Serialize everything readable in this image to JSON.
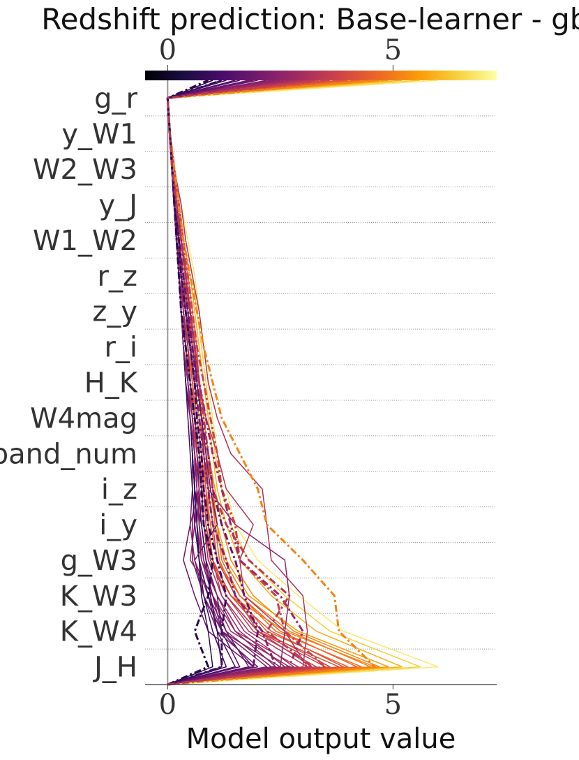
{
  "chart_data": {
    "type": "line",
    "title": "Redshift prediction: Base-learner - gbr",
    "xlabel": "Model output value",
    "ylabel": "",
    "features": [
      "g_r",
      "y_W1",
      "W2_W3",
      "y_J",
      "W1_W2",
      "r_z",
      "z_y",
      "r_i",
      "H_K",
      "W4mag",
      "band_num",
      "i_z",
      "i_y",
      "g_W3",
      "K_W3",
      "K_W4",
      "J_H"
    ],
    "xlim": [
      -0.5,
      7.3
    ],
    "base_value": 0,
    "x_ticks": [
      0,
      5
    ],
    "x_tick_labels": [
      "0",
      "5"
    ],
    "colorbar": {
      "range": [
        0,
        7.3
      ],
      "ticks": [
        0,
        5
      ],
      "tick_labels": [
        "0",
        "5"
      ],
      "colormap": [
        "#000004",
        "#1b0c41",
        "#4a0c6b",
        "#781c6d",
        "#a52c60",
        "#cf4446",
        "#ed6925",
        "#fb9b06",
        "#f7d13d",
        "#fcffa4"
      ]
    },
    "series": [
      {
        "final": 4.6,
        "values": [
          0.0,
          0.05,
          0.1,
          0.15,
          0.2,
          0.25,
          0.3,
          0.35,
          0.45,
          0.55,
          0.65,
          0.75,
          0.8,
          0.9,
          1.4,
          2.6,
          4.6
        ],
        "style": "solid"
      },
      {
        "final": 4.3,
        "values": [
          0.0,
          0.05,
          0.1,
          0.15,
          0.25,
          0.35,
          0.5,
          0.6,
          0.7,
          0.8,
          0.9,
          1.0,
          1.1,
          1.2,
          1.6,
          2.4,
          4.3
        ],
        "style": "solid"
      },
      {
        "final": 4.0,
        "values": [
          0.0,
          0.05,
          0.15,
          0.2,
          0.3,
          0.45,
          0.55,
          0.65,
          0.7,
          0.75,
          0.85,
          1.0,
          1.05,
          1.15,
          1.5,
          2.2,
          4.0
        ],
        "style": "solid"
      },
      {
        "final": 3.8,
        "values": [
          0.0,
          0.05,
          0.1,
          0.2,
          0.3,
          0.4,
          0.5,
          0.55,
          0.65,
          0.75,
          0.85,
          0.9,
          0.9,
          1.0,
          1.3,
          2.0,
          3.8
        ],
        "style": "solid"
      },
      {
        "final": 3.5,
        "values": [
          0.0,
          0.05,
          0.1,
          0.15,
          0.25,
          0.35,
          0.45,
          0.55,
          0.65,
          0.75,
          0.85,
          0.9,
          1.0,
          1.1,
          1.5,
          2.0,
          3.5
        ],
        "style": "solid"
      },
      {
        "final": 3.3,
        "values": [
          0.0,
          0.05,
          0.1,
          0.15,
          0.2,
          0.3,
          0.35,
          0.45,
          0.55,
          0.65,
          0.75,
          0.8,
          0.85,
          0.95,
          1.3,
          1.9,
          3.3
        ],
        "style": "solid"
      },
      {
        "final": 3.1,
        "values": [
          0.0,
          0.05,
          0.1,
          0.2,
          0.25,
          0.35,
          0.45,
          0.5,
          0.6,
          0.7,
          0.8,
          0.85,
          0.9,
          1.0,
          1.2,
          1.8,
          3.1
        ],
        "style": "solid"
      },
      {
        "final": 2.9,
        "values": [
          0.0,
          0.05,
          0.15,
          0.25,
          0.3,
          0.4,
          0.45,
          0.5,
          0.55,
          0.65,
          0.75,
          0.8,
          0.7,
          0.8,
          1.0,
          1.5,
          2.9
        ],
        "style": "solid"
      },
      {
        "final": 2.7,
        "values": [
          0.0,
          0.05,
          0.1,
          0.15,
          0.2,
          0.3,
          0.35,
          0.45,
          0.5,
          0.6,
          0.7,
          0.75,
          0.6,
          0.5,
          1.0,
          1.4,
          2.7
        ],
        "style": "solid"
      },
      {
        "final": 2.5,
        "values": [
          0.0,
          0.05,
          0.1,
          0.15,
          0.25,
          0.3,
          0.4,
          0.45,
          0.5,
          0.55,
          0.65,
          0.7,
          0.5,
          0.6,
          0.9,
          1.2,
          2.5
        ],
        "style": "solid"
      },
      {
        "final": 2.3,
        "values": [
          0.0,
          0.05,
          0.1,
          0.2,
          0.25,
          0.3,
          0.35,
          0.4,
          0.45,
          0.5,
          0.6,
          0.65,
          0.6,
          0.7,
          0.9,
          1.3,
          2.3
        ],
        "style": "solid"
      },
      {
        "final": 2.2,
        "values": [
          0.0,
          0.05,
          0.1,
          0.15,
          0.2,
          0.25,
          0.3,
          0.4,
          0.45,
          0.55,
          0.6,
          0.7,
          0.65,
          0.75,
          1.0,
          1.2,
          2.2
        ],
        "style": "solid"
      },
      {
        "final": 2.0,
        "values": [
          0.0,
          0.05,
          0.1,
          0.15,
          0.2,
          0.25,
          0.35,
          0.4,
          0.5,
          0.55,
          0.6,
          0.6,
          0.55,
          0.55,
          0.8,
          1.1,
          2.0
        ],
        "style": "solid"
      },
      {
        "final": 1.9,
        "values": [
          0.0,
          0.05,
          0.1,
          0.15,
          0.25,
          0.3,
          0.35,
          0.4,
          0.45,
          0.5,
          0.55,
          0.55,
          0.5,
          0.35,
          0.6,
          0.9,
          1.9
        ],
        "style": "solid"
      },
      {
        "final": 1.8,
        "values": [
          0.0,
          0.05,
          0.1,
          0.15,
          0.2,
          0.3,
          0.35,
          0.45,
          0.5,
          0.55,
          0.6,
          0.65,
          0.7,
          0.8,
          1.0,
          1.3,
          1.8
        ],
        "style": "solid"
      },
      {
        "final": 1.6,
        "values": [
          0.0,
          0.05,
          0.1,
          0.15,
          0.2,
          0.3,
          0.35,
          0.45,
          0.5,
          0.6,
          0.65,
          0.7,
          0.75,
          0.85,
          1.1,
          1.2,
          1.6
        ],
        "style": "solid"
      },
      {
        "final": 1.5,
        "values": [
          0.0,
          0.05,
          0.1,
          0.15,
          0.2,
          0.25,
          0.3,
          0.35,
          0.4,
          0.5,
          0.55,
          0.6,
          0.65,
          0.7,
          0.9,
          1.1,
          1.5
        ],
        "style": "solid"
      },
      {
        "final": 1.3,
        "values": [
          0.0,
          0.05,
          0.1,
          0.15,
          0.2,
          0.25,
          0.3,
          0.35,
          0.4,
          0.45,
          0.5,
          0.55,
          0.6,
          0.7,
          0.8,
          1.0,
          1.3
        ],
        "style": "solid"
      },
      {
        "final": 1.2,
        "values": [
          0.0,
          0.05,
          0.1,
          0.15,
          0.2,
          0.25,
          0.3,
          0.35,
          0.4,
          0.5,
          0.55,
          0.6,
          0.75,
          0.85,
          0.95,
          1.1,
          1.2
        ],
        "style": "solid"
      },
      {
        "final": 1.0,
        "values": [
          0.0,
          0.05,
          0.1,
          0.15,
          0.2,
          0.25,
          0.3,
          0.35,
          0.45,
          0.5,
          0.55,
          0.6,
          0.65,
          0.7,
          0.75,
          0.9,
          1.0
        ],
        "style": "solid"
      },
      {
        "final": 4.9,
        "values": [
          0.0,
          0.05,
          0.1,
          0.15,
          0.2,
          0.3,
          0.4,
          0.5,
          0.6,
          0.7,
          0.85,
          0.95,
          1.1,
          1.3,
          1.8,
          2.9,
          4.9
        ],
        "style": "solid"
      },
      {
        "final": 4.7,
        "values": [
          0.0,
          0.05,
          0.1,
          0.2,
          0.3,
          0.4,
          0.5,
          0.6,
          0.7,
          0.8,
          0.9,
          1.05,
          1.2,
          1.4,
          1.9,
          2.8,
          4.7
        ],
        "style": "solid"
      },
      {
        "final": 4.5,
        "values": [
          0.0,
          0.05,
          0.15,
          0.2,
          0.3,
          0.4,
          0.45,
          0.55,
          0.65,
          0.75,
          0.85,
          0.95,
          1.05,
          1.25,
          1.7,
          2.7,
          4.5
        ],
        "style": "solid"
      },
      {
        "final": 4.2,
        "values": [
          0.0,
          0.05,
          0.1,
          0.15,
          0.25,
          0.35,
          0.4,
          0.5,
          0.55,
          0.65,
          0.75,
          0.85,
          0.95,
          1.1,
          1.6,
          2.5,
          4.2
        ],
        "style": "solid"
      },
      {
        "final": 3.9,
        "values": [
          0.0,
          0.05,
          0.1,
          0.15,
          0.2,
          0.3,
          0.4,
          0.45,
          0.55,
          0.6,
          0.7,
          0.8,
          0.9,
          1.0,
          1.4,
          2.3,
          3.9
        ],
        "style": "solid"
      },
      {
        "final": 3.6,
        "values": [
          0.0,
          0.05,
          0.1,
          0.15,
          0.2,
          0.25,
          0.35,
          0.45,
          0.5,
          0.6,
          0.7,
          0.8,
          0.85,
          1.0,
          1.4,
          2.1,
          3.6
        ],
        "style": "solid"
      },
      {
        "final": 3.2,
        "values": [
          0.0,
          0.05,
          0.1,
          0.15,
          0.2,
          0.3,
          0.35,
          0.4,
          0.5,
          0.55,
          0.65,
          0.75,
          0.8,
          0.95,
          1.3,
          2.0,
          3.2
        ],
        "style": "solid"
      },
      {
        "final": 2.8,
        "values": [
          0.0,
          0.05,
          0.1,
          0.15,
          0.25,
          0.3,
          0.35,
          0.45,
          0.5,
          0.6,
          0.65,
          0.75,
          0.8,
          0.9,
          1.2,
          1.7,
          2.8
        ],
        "style": "solid"
      },
      {
        "final": 2.6,
        "values": [
          0.0,
          0.05,
          0.1,
          0.15,
          0.2,
          0.25,
          0.35,
          0.4,
          0.45,
          0.55,
          0.6,
          0.7,
          0.7,
          0.75,
          1.1,
          1.6,
          2.6
        ],
        "style": "solid"
      },
      {
        "final": 2.4,
        "values": [
          0.0,
          0.05,
          0.1,
          0.15,
          0.2,
          0.25,
          0.3,
          0.35,
          0.45,
          0.5,
          0.6,
          0.65,
          0.7,
          0.8,
          1.1,
          1.5,
          2.4
        ],
        "style": "solid"
      },
      {
        "final": 5.2,
        "values": [
          0.0,
          0.05,
          0.15,
          0.25,
          0.35,
          0.5,
          0.6,
          0.7,
          0.8,
          0.9,
          1.0,
          1.1,
          1.3,
          1.6,
          2.3,
          3.3,
          5.2
        ],
        "style": "solid"
      },
      {
        "final": 5.6,
        "values": [
          0.0,
          0.05,
          0.15,
          0.3,
          0.4,
          0.55,
          0.65,
          0.75,
          0.85,
          0.95,
          1.05,
          1.2,
          1.4,
          1.8,
          2.6,
          3.6,
          5.6
        ],
        "style": "solid"
      },
      {
        "final": 6.0,
        "values": [
          0.0,
          0.05,
          0.15,
          0.3,
          0.45,
          0.6,
          0.7,
          0.8,
          0.9,
          1.0,
          1.1,
          1.3,
          1.5,
          2.0,
          2.9,
          3.9,
          6.0
        ],
        "style": "solid"
      },
      {
        "final": 3.0,
        "values": [
          0.0,
          0.05,
          0.15,
          0.3,
          0.4,
          0.55,
          0.7,
          0.8,
          0.9,
          1.1,
          1.4,
          2.1,
          2.2,
          2.3,
          3.0,
          3.1,
          3.0
        ],
        "style": "solid"
      },
      {
        "final": 2.5,
        "values": [
          0.0,
          0.05,
          0.1,
          0.15,
          0.25,
          0.35,
          0.45,
          0.55,
          0.65,
          0.75,
          0.8,
          0.9,
          1.5,
          2.6,
          2.7,
          2.6,
          2.5
        ],
        "style": "solid"
      },
      {
        "final": 3.1,
        "values": [
          0.0,
          0.05,
          0.1,
          0.2,
          0.25,
          0.35,
          0.45,
          0.55,
          0.7,
          0.85,
          1.1,
          1.3,
          1.9,
          1.6,
          1.7,
          2.6,
          3.1
        ],
        "style": "solid"
      },
      {
        "final": 1.9,
        "values": [
          0.0,
          0.05,
          0.1,
          0.2,
          0.3,
          0.4,
          0.5,
          0.6,
          0.65,
          0.75,
          0.85,
          0.95,
          1.1,
          0.6,
          0.8,
          1.2,
          1.9
        ],
        "style": "solid"
      },
      {
        "final": 2.4,
        "values": [
          0.0,
          0.05,
          0.1,
          0.15,
          0.2,
          0.3,
          0.4,
          0.5,
          0.6,
          0.7,
          0.8,
          0.9,
          1.0,
          1.3,
          1.5,
          2.1,
          2.4
        ],
        "style": "dashdot"
      },
      {
        "final": 3.5,
        "values": [
          0.0,
          0.05,
          0.15,
          0.25,
          0.35,
          0.45,
          0.55,
          0.65,
          0.8,
          0.95,
          1.1,
          1.2,
          1.5,
          1.6,
          2.4,
          2.6,
          3.5
        ],
        "style": "dashdot"
      },
      {
        "final": 4.6,
        "values": [
          0.0,
          0.05,
          0.15,
          0.25,
          0.35,
          0.5,
          0.65,
          0.8,
          1.0,
          1.2,
          1.6,
          2.0,
          2.2,
          3.0,
          3.7,
          3.8,
          4.6
        ],
        "style": "dashdot"
      },
      {
        "final": 2.7,
        "values": [
          0.0,
          0.05,
          0.1,
          0.2,
          0.3,
          0.4,
          0.5,
          0.6,
          0.7,
          0.85,
          1.0,
          1.2,
          1.4,
          1.6,
          2.5,
          3.0,
          2.7
        ],
        "style": "dashdot"
      },
      {
        "final": 1.9,
        "values": [
          0.0,
          0.05,
          0.1,
          0.15,
          0.25,
          0.35,
          0.45,
          0.55,
          0.65,
          0.75,
          0.9,
          1.0,
          1.2,
          1.5,
          1.7,
          2.0,
          1.9
        ],
        "style": "dashdot"
      },
      {
        "final": 0.9,
        "values": [
          0.0,
          0.05,
          0.1,
          0.15,
          0.2,
          0.25,
          0.3,
          0.4,
          0.5,
          0.6,
          0.7,
          0.75,
          0.8,
          1.0,
          0.9,
          0.6,
          0.9
        ],
        "style": "dashdot"
      },
      {
        "final": 1.2,
        "values": [
          0.0,
          0.05,
          0.1,
          0.15,
          0.25,
          0.3,
          0.4,
          0.5,
          0.6,
          0.65,
          0.75,
          0.8,
          0.9,
          1.1,
          1.3,
          1.2,
          1.2
        ],
        "style": "dashdot"
      },
      {
        "final": 3.2,
        "values": [
          0.0,
          0.05,
          0.1,
          0.2,
          0.3,
          0.4,
          0.5,
          0.6,
          0.7,
          0.8,
          0.9,
          1.0,
          1.3,
          1.8,
          2.7,
          2.2,
          3.2
        ],
        "style": "dashdot"
      }
    ]
  }
}
